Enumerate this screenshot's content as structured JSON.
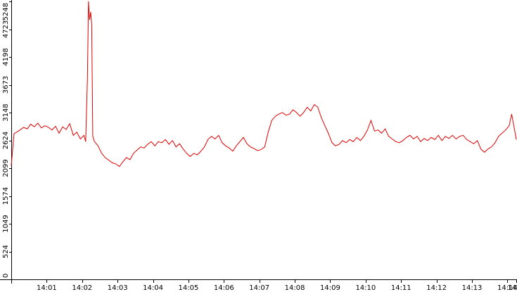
{
  "chart_data": {
    "type": "line",
    "title": "",
    "xlabel": "",
    "ylabel": "",
    "ylim": [
      0,
      5248
    ],
    "y_ticks": [
      0,
      524,
      1049,
      1574,
      2099,
      2624,
      3148,
      3673,
      4198,
      4723,
      5248
    ],
    "x_range_minutes": [
      0,
      14.25
    ],
    "x_ticks": [
      {
        "label": "14:01",
        "minute": 1
      },
      {
        "label": "14:02",
        "minute": 2
      },
      {
        "label": "14:03",
        "minute": 3
      },
      {
        "label": "14:04",
        "minute": 4
      },
      {
        "label": "14:05",
        "minute": 5
      },
      {
        "label": "14:06",
        "minute": 6
      },
      {
        "label": "14:07",
        "minute": 7
      },
      {
        "label": "14:08",
        "minute": 8
      },
      {
        "label": "14:09",
        "minute": 9
      },
      {
        "label": "14:10",
        "minute": 10
      },
      {
        "label": "14:11",
        "minute": 11
      },
      {
        "label": "14:12",
        "minute": 12
      },
      {
        "label": "14:13",
        "minute": 13
      },
      {
        "label": "14:14",
        "minute": 14
      },
      {
        "label": "14",
        "minute": 14.25
      }
    ],
    "series": [
      {
        "color": "#e00000",
        "points": [
          [
            0.0,
            2150
          ],
          [
            0.08,
            2750
          ],
          [
            0.15,
            2780
          ],
          [
            0.25,
            2820
          ],
          [
            0.35,
            2870
          ],
          [
            0.45,
            2840
          ],
          [
            0.55,
            2930
          ],
          [
            0.65,
            2880
          ],
          [
            0.75,
            2950
          ],
          [
            0.85,
            2860
          ],
          [
            0.95,
            2900
          ],
          [
            1.05,
            2870
          ],
          [
            1.15,
            2820
          ],
          [
            1.25,
            2890
          ],
          [
            1.35,
            2760
          ],
          [
            1.45,
            2880
          ],
          [
            1.55,
            2830
          ],
          [
            1.65,
            2940
          ],
          [
            1.75,
            2720
          ],
          [
            1.85,
            2780
          ],
          [
            1.95,
            2650
          ],
          [
            2.05,
            2720
          ],
          [
            2.1,
            2600
          ],
          [
            2.15,
            3800
          ],
          [
            2.18,
            5250
          ],
          [
            2.21,
            4900
          ],
          [
            2.24,
            5050
          ],
          [
            2.27,
            4800
          ],
          [
            2.3,
            2700
          ],
          [
            2.35,
            2600
          ],
          [
            2.45,
            2520
          ],
          [
            2.55,
            2380
          ],
          [
            2.65,
            2300
          ],
          [
            2.75,
            2250
          ],
          [
            2.85,
            2200
          ],
          [
            2.95,
            2180
          ],
          [
            3.05,
            2130
          ],
          [
            3.15,
            2220
          ],
          [
            3.25,
            2300
          ],
          [
            3.35,
            2260
          ],
          [
            3.45,
            2380
          ],
          [
            3.55,
            2440
          ],
          [
            3.65,
            2500
          ],
          [
            3.75,
            2480
          ],
          [
            3.85,
            2550
          ],
          [
            3.95,
            2600
          ],
          [
            4.05,
            2520
          ],
          [
            4.15,
            2600
          ],
          [
            4.25,
            2580
          ],
          [
            4.35,
            2640
          ],
          [
            4.45,
            2550
          ],
          [
            4.55,
            2620
          ],
          [
            4.65,
            2500
          ],
          [
            4.75,
            2560
          ],
          [
            4.85,
            2460
          ],
          [
            4.95,
            2380
          ],
          [
            5.05,
            2320
          ],
          [
            5.15,
            2380
          ],
          [
            5.25,
            2350
          ],
          [
            5.35,
            2420
          ],
          [
            5.45,
            2500
          ],
          [
            5.55,
            2640
          ],
          [
            5.65,
            2700
          ],
          [
            5.75,
            2650
          ],
          [
            5.85,
            2720
          ],
          [
            5.95,
            2580
          ],
          [
            6.05,
            2520
          ],
          [
            6.15,
            2480
          ],
          [
            6.25,
            2420
          ],
          [
            6.35,
            2520
          ],
          [
            6.45,
            2600
          ],
          [
            6.55,
            2680
          ],
          [
            6.65,
            2560
          ],
          [
            6.75,
            2500
          ],
          [
            6.85,
            2470
          ],
          [
            6.95,
            2430
          ],
          [
            7.05,
            2450
          ],
          [
            7.15,
            2500
          ],
          [
            7.25,
            2780
          ],
          [
            7.35,
            3000
          ],
          [
            7.45,
            3080
          ],
          [
            7.55,
            3120
          ],
          [
            7.65,
            3150
          ],
          [
            7.75,
            3100
          ],
          [
            7.85,
            3120
          ],
          [
            7.95,
            3200
          ],
          [
            8.05,
            3150
          ],
          [
            8.15,
            3080
          ],
          [
            8.25,
            3150
          ],
          [
            8.35,
            3250
          ],
          [
            8.45,
            3180
          ],
          [
            8.55,
            3300
          ],
          [
            8.65,
            3250
          ],
          [
            8.75,
            3050
          ],
          [
            8.85,
            2900
          ],
          [
            8.95,
            2750
          ],
          [
            9.05,
            2580
          ],
          [
            9.15,
            2520
          ],
          [
            9.25,
            2550
          ],
          [
            9.35,
            2620
          ],
          [
            9.45,
            2580
          ],
          [
            9.55,
            2640
          ],
          [
            9.65,
            2600
          ],
          [
            9.75,
            2680
          ],
          [
            9.85,
            2620
          ],
          [
            9.95,
            2700
          ],
          [
            10.05,
            2820
          ],
          [
            10.15,
            3000
          ],
          [
            10.25,
            2800
          ],
          [
            10.35,
            2820
          ],
          [
            10.45,
            2760
          ],
          [
            10.55,
            2840
          ],
          [
            10.65,
            2700
          ],
          [
            10.75,
            2650
          ],
          [
            10.85,
            2600
          ],
          [
            10.95,
            2580
          ],
          [
            11.05,
            2620
          ],
          [
            11.15,
            2680
          ],
          [
            11.25,
            2720
          ],
          [
            11.35,
            2650
          ],
          [
            11.45,
            2700
          ],
          [
            11.55,
            2600
          ],
          [
            11.65,
            2660
          ],
          [
            11.75,
            2620
          ],
          [
            11.85,
            2680
          ],
          [
            11.95,
            2640
          ],
          [
            12.05,
            2720
          ],
          [
            12.15,
            2620
          ],
          [
            12.25,
            2700
          ],
          [
            12.35,
            2660
          ],
          [
            12.45,
            2720
          ],
          [
            12.55,
            2650
          ],
          [
            12.65,
            2700
          ],
          [
            12.75,
            2720
          ],
          [
            12.85,
            2640
          ],
          [
            12.95,
            2600
          ],
          [
            13.05,
            2560
          ],
          [
            13.15,
            2620
          ],
          [
            13.25,
            2460
          ],
          [
            13.35,
            2400
          ],
          [
            13.45,
            2460
          ],
          [
            13.55,
            2500
          ],
          [
            13.65,
            2580
          ],
          [
            13.75,
            2700
          ],
          [
            13.85,
            2760
          ],
          [
            13.95,
            2820
          ],
          [
            14.05,
            2900
          ],
          [
            14.12,
            3120
          ],
          [
            14.18,
            2900
          ],
          [
            14.25,
            2640
          ]
        ]
      }
    ]
  }
}
